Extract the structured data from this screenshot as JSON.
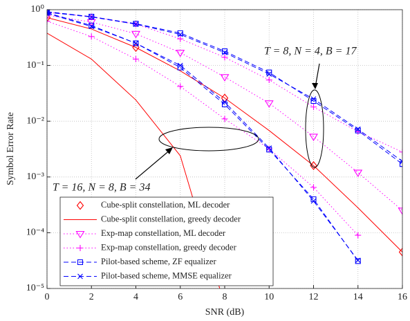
{
  "chart_data": {
    "type": "line",
    "x_label": "SNR (dB)",
    "y_label": "Symbol Error Rate",
    "xlim": [
      0,
      16
    ],
    "xticks": [
      0,
      2,
      4,
      6,
      8,
      10,
      12,
      14,
      16
    ],
    "ylim": [
      1e-05,
      1
    ],
    "yscale": "log",
    "yticks": [
      {
        "value": 1e-05,
        "label": "10⁻⁵"
      },
      {
        "value": 0.0001,
        "label": "10⁻⁴"
      },
      {
        "value": 0.001,
        "label": "10⁻³"
      },
      {
        "value": 0.01,
        "label": "10⁻²"
      },
      {
        "value": 0.1,
        "label": "10⁻¹"
      },
      {
        "value": 1,
        "label": "10⁰"
      }
    ],
    "grid": true,
    "legend": "lower left",
    "annotations": [
      "T = 8, N = 4, B = 17",
      "T = 16, N = 8, B = 34"
    ],
    "series": [
      {
        "name": "Cube-split constellation, ML decoder",
        "color": "#ff0000",
        "line": "none",
        "marker": "diamond",
        "curves": [
          {
            "x": [
              0,
              4,
              8,
              12,
              16
            ],
            "values": [
              0.72,
              0.21,
              0.026,
              0.0016,
              4.5e-05
            ]
          }
        ]
      },
      {
        "name": "Cube-split constellation, greedy decoder",
        "color": "#ff0000",
        "line": "solid",
        "marker": "none",
        "curves": [
          {
            "x": [
              0,
              2,
              4,
              6,
              8
            ],
            "values": [
              0.38,
              0.13,
              0.024,
              0.0024,
              5e-06
            ]
          },
          {
            "x": [
              0,
              2,
              4,
              6,
              8,
              10,
              12,
              14,
              16
            ],
            "values": [
              0.72,
              0.45,
              0.21,
              0.08,
              0.026,
              0.0068,
              0.0016,
              0.00028,
              4.5e-05
            ]
          }
        ]
      },
      {
        "name": "Exp-map constellation, ML decoder",
        "color": "#ff00ff",
        "line": "dotted",
        "marker": "triangle",
        "curves": [
          {
            "x": [
              0,
              2,
              4,
              6,
              8,
              10,
              12,
              14,
              16
            ],
            "values": [
              0.8,
              0.6,
              0.37,
              0.17,
              0.062,
              0.021,
              0.0053,
              0.0012,
              0.00025
            ]
          }
        ]
      },
      {
        "name": "Exp-map constellation, greedy decoder",
        "color": "#ff00ff",
        "line": "dotted",
        "marker": "plus",
        "curves": [
          {
            "x": [
              0,
              2,
              4,
              6,
              8,
              10,
              12,
              14
            ],
            "values": [
              0.62,
              0.33,
              0.13,
              0.042,
              0.011,
              0.0032,
              0.00065,
              9e-05
            ]
          },
          {
            "x": [
              0,
              2,
              4,
              6,
              8,
              10,
              12,
              14,
              16
            ],
            "values": [
              0.9,
              0.75,
              0.55,
              0.3,
              0.14,
              0.055,
              0.018,
              0.0065,
              0.0028
            ]
          }
        ]
      },
      {
        "name": "Pilot-based scheme, ZF equalizer",
        "color": "#0000ff",
        "line": "dashed",
        "marker": "square",
        "curves": [
          {
            "x": [
              0,
              2,
              4,
              6,
              8,
              10,
              12,
              14
            ],
            "values": [
              0.88,
              0.52,
              0.25,
              0.092,
              0.02,
              0.0031,
              0.0004,
              3.1e-05
            ]
          },
          {
            "x": [
              0,
              2,
              4,
              6,
              8,
              10,
              12,
              14,
              16
            ],
            "values": [
              0.92,
              0.75,
              0.56,
              0.38,
              0.18,
              0.075,
              0.023,
              0.0068,
              0.0017
            ]
          }
        ]
      },
      {
        "name": "Pilot-based scheme, MMSE equalizer",
        "color": "#0000ff",
        "line": "dashed",
        "marker": "x",
        "curves": [
          {
            "x": [
              0,
              2,
              4,
              6,
              8,
              10,
              12,
              14
            ],
            "values": [
              0.86,
              0.5,
              0.25,
              0.1,
              0.022,
              0.0033,
              0.00037,
              3.2e-05
            ]
          },
          {
            "x": [
              0,
              2,
              4,
              6,
              8,
              10,
              12,
              14,
              16
            ],
            "values": [
              0.9,
              0.74,
              0.55,
              0.36,
              0.17,
              0.07,
              0.025,
              0.0072,
              0.0019
            ]
          }
        ]
      }
    ]
  }
}
